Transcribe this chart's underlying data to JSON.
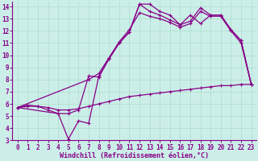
{
  "bg_color": "#cceee8",
  "line_color": "#880088",
  "grid_color": "#aaddcc",
  "xlabel": "Windchill (Refroidissement éolien,°C)",
  "xlim": [
    -0.5,
    23.5
  ],
  "ylim": [
    3,
    14.4
  ],
  "xticks": [
    0,
    1,
    2,
    3,
    4,
    5,
    6,
    7,
    8,
    9,
    10,
    11,
    12,
    13,
    14,
    15,
    16,
    17,
    18,
    19,
    20,
    21,
    22,
    23
  ],
  "yticks": [
    3,
    4,
    5,
    6,
    7,
    8,
    9,
    10,
    11,
    12,
    13,
    14
  ],
  "curve1_x": [
    0,
    1,
    2,
    3,
    4,
    5,
    6,
    7,
    8,
    9,
    10,
    11,
    12,
    13,
    14,
    15,
    16,
    17,
    18,
    19,
    20,
    21,
    22,
    23
  ],
  "curve1_y": [
    5.7,
    5.9,
    5.8,
    5.5,
    5.2,
    5.2,
    5.5,
    8.3,
    8.2,
    9.7,
    11.0,
    11.9,
    14.2,
    14.2,
    13.6,
    13.3,
    12.5,
    13.3,
    12.6,
    13.3,
    13.3,
    12.1,
    11.2,
    7.6
  ],
  "curve2_x": [
    0,
    4,
    5,
    6,
    7,
    8,
    9,
    10,
    11,
    12,
    13,
    14,
    15,
    16,
    17,
    18,
    19,
    20,
    21,
    22,
    23
  ],
  "curve2_y": [
    5.7,
    5.2,
    3.1,
    4.6,
    4.4,
    8.3,
    9.7,
    11.0,
    11.9,
    14.2,
    13.6,
    13.3,
    12.9,
    12.5,
    12.8,
    13.9,
    13.3,
    13.3,
    12.1,
    11.2,
    7.6
  ],
  "curve3_x": [
    0,
    7,
    8,
    9,
    10,
    11,
    12,
    13,
    14,
    15,
    16,
    17,
    18,
    19,
    20,
    21,
    22,
    23
  ],
  "curve3_y": [
    5.7,
    8.0,
    8.5,
    9.8,
    11.1,
    12.1,
    13.5,
    13.2,
    13.0,
    12.7,
    12.3,
    12.6,
    13.6,
    13.2,
    13.2,
    12.0,
    11.0,
    7.6
  ],
  "curve4_x": [
    0,
    1,
    2,
    3,
    4,
    5,
    6,
    7,
    8,
    9,
    10,
    11,
    12,
    13,
    14,
    15,
    16,
    17,
    18,
    19,
    20,
    21,
    22,
    23
  ],
  "curve4_y": [
    5.7,
    5.8,
    5.8,
    5.7,
    5.5,
    5.5,
    5.6,
    5.8,
    6.0,
    6.2,
    6.4,
    6.6,
    6.7,
    6.8,
    6.9,
    7.0,
    7.1,
    7.2,
    7.3,
    7.4,
    7.5,
    7.5,
    7.6,
    7.6
  ],
  "tick_fontsize": 5.5,
  "axis_fontsize": 6.0,
  "linewidth": 0.9,
  "markersize": 2.5,
  "markeredgewidth": 0.8
}
